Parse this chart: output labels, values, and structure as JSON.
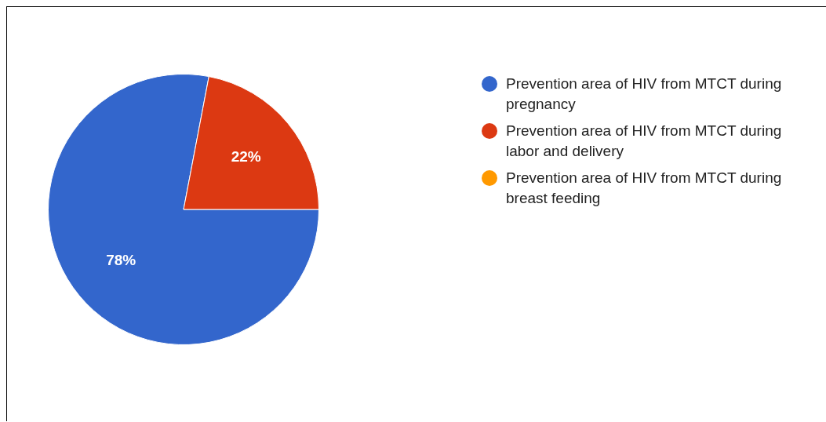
{
  "chart_data": {
    "type": "pie",
    "categories": [
      "Prevention area of HIV from MTCT during pregnancy",
      "Prevention area of HIV from MTCT during labor and delivery",
      "Prevention area of HIV from MTCT during breast feeding"
    ],
    "values": [
      78,
      22,
      0
    ],
    "colors": [
      "#3366cc",
      "#dc3912",
      "#ff9900"
    ],
    "value_labels": [
      "78%",
      "22%",
      null
    ],
    "legend": "right"
  }
}
